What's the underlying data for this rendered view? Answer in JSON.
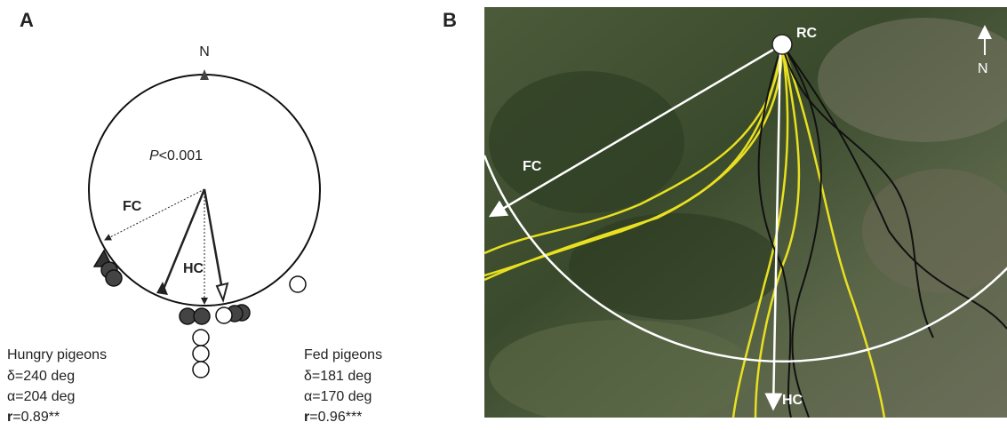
{
  "panel_a": {
    "label": "A",
    "north": "N",
    "p_prefix": "P",
    "p_value": "<0.001",
    "fc": "FC",
    "hc": "HC",
    "hungry": {
      "title": "Hungry pigeons",
      "delta": "δ=240 deg",
      "alpha": "α=204 deg",
      "r_symbol": "r",
      "r_value": "=0.89**"
    },
    "fed": {
      "title": "Fed pigeons",
      "delta": "δ=181 deg",
      "alpha": "α=170 deg",
      "r_symbol": "r",
      "r_value": "=0.96***"
    }
  },
  "panel_b": {
    "label": "B",
    "rc": "RC",
    "fc": "FC",
    "hc": "HC",
    "north": "N"
  }
}
